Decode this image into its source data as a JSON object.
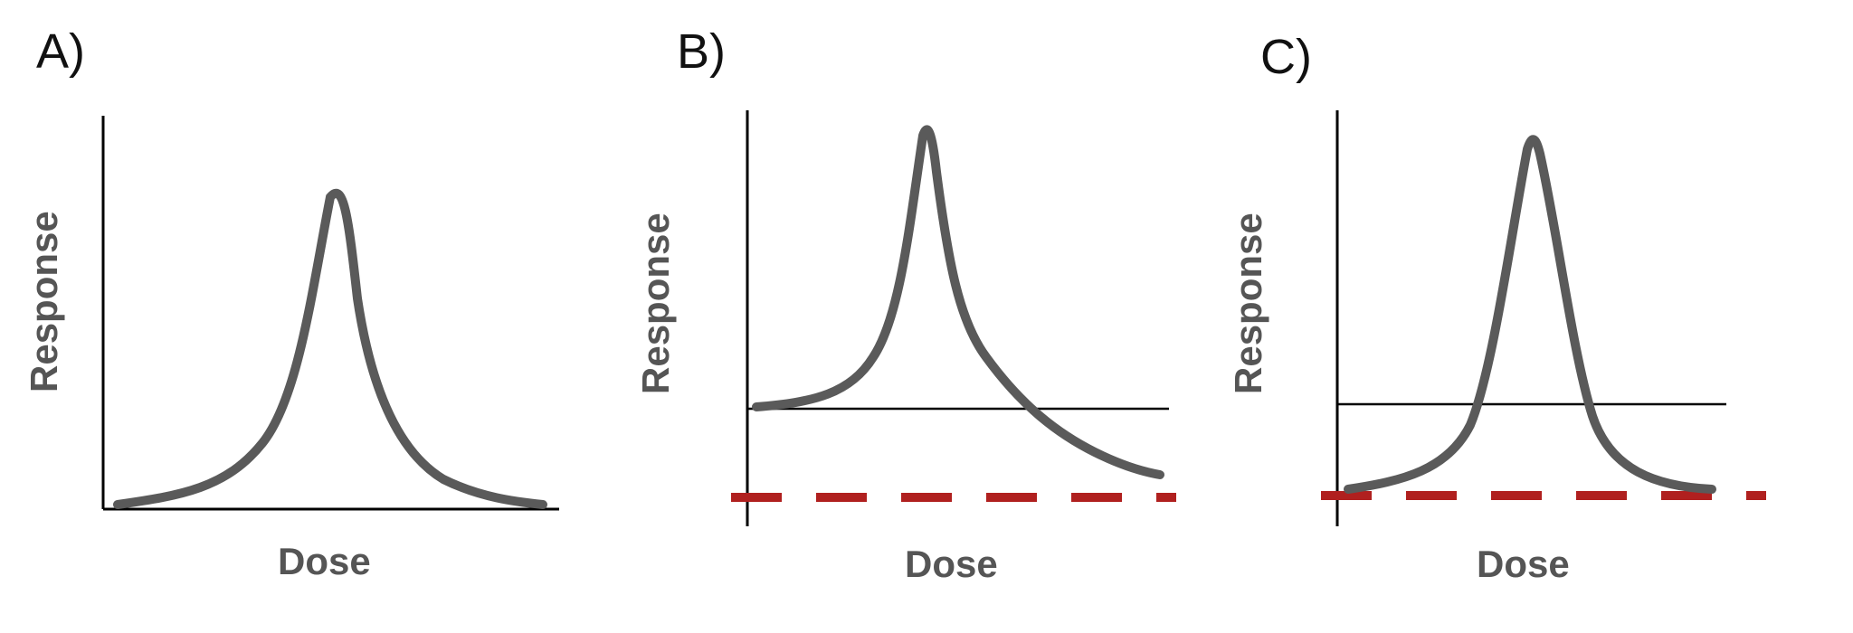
{
  "panels": [
    {
      "letter": "A)",
      "xlabel": "Dose",
      "ylabel": "Response"
    },
    {
      "letter": "B)",
      "xlabel": "Dose",
      "ylabel": "Response"
    },
    {
      "letter": "C)",
      "xlabel": "Dose",
      "ylabel": "Response"
    }
  ],
  "colors": {
    "curve": "#5a5a5a",
    "axis": "#000000",
    "dashed": "#b0201f",
    "label": "#555555"
  }
}
